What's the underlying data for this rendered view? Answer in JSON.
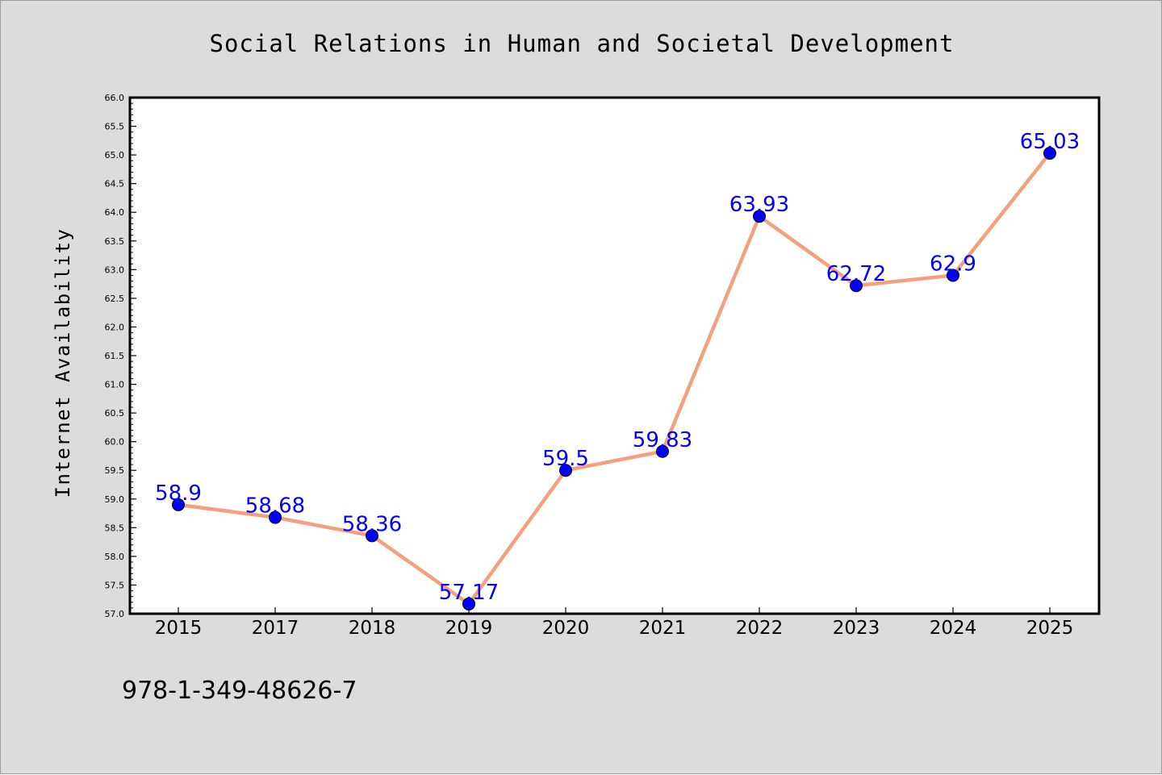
{
  "chart_data": {
    "type": "line",
    "title": "Social Relations in Human and Societal Development",
    "xlabel": "",
    "ylabel": "Internet Availability",
    "categories": [
      "2015",
      "2017",
      "2018",
      "2019",
      "2020",
      "2021",
      "2022",
      "2023",
      "2024",
      "2025"
    ],
    "series": [
      {
        "values": [
          58.9,
          58.68,
          58.36,
          57.17,
          59.5,
          59.83,
          63.93,
          62.72,
          62.9,
          65.03
        ],
        "labels": [
          "58.9",
          "58.68",
          "58.36",
          "57.17",
          "59.5",
          "59.83",
          "63.93",
          "62.72",
          "62.9",
          "65.03"
        ]
      }
    ],
    "ylim": [
      57.0,
      66.0
    ],
    "yticks": [
      "57.0",
      "57.5",
      "58.0",
      "58.5",
      "59.0",
      "59.5",
      "60.0",
      "60.5",
      "61.0",
      "61.5",
      "62.0",
      "62.5",
      "63.0",
      "63.5",
      "64.0",
      "64.5",
      "65.0",
      "65.5",
      "66.0"
    ],
    "grid": false,
    "legend": "none",
    "annotation": "978-1-349-48626-7",
    "colors": {
      "line": "#f4a07c",
      "marker": "#0000ff",
      "marker_edge": "#000000",
      "data_label": "#0000ff",
      "background": "#dcdcdc",
      "plot_background": "#ffffff"
    }
  }
}
